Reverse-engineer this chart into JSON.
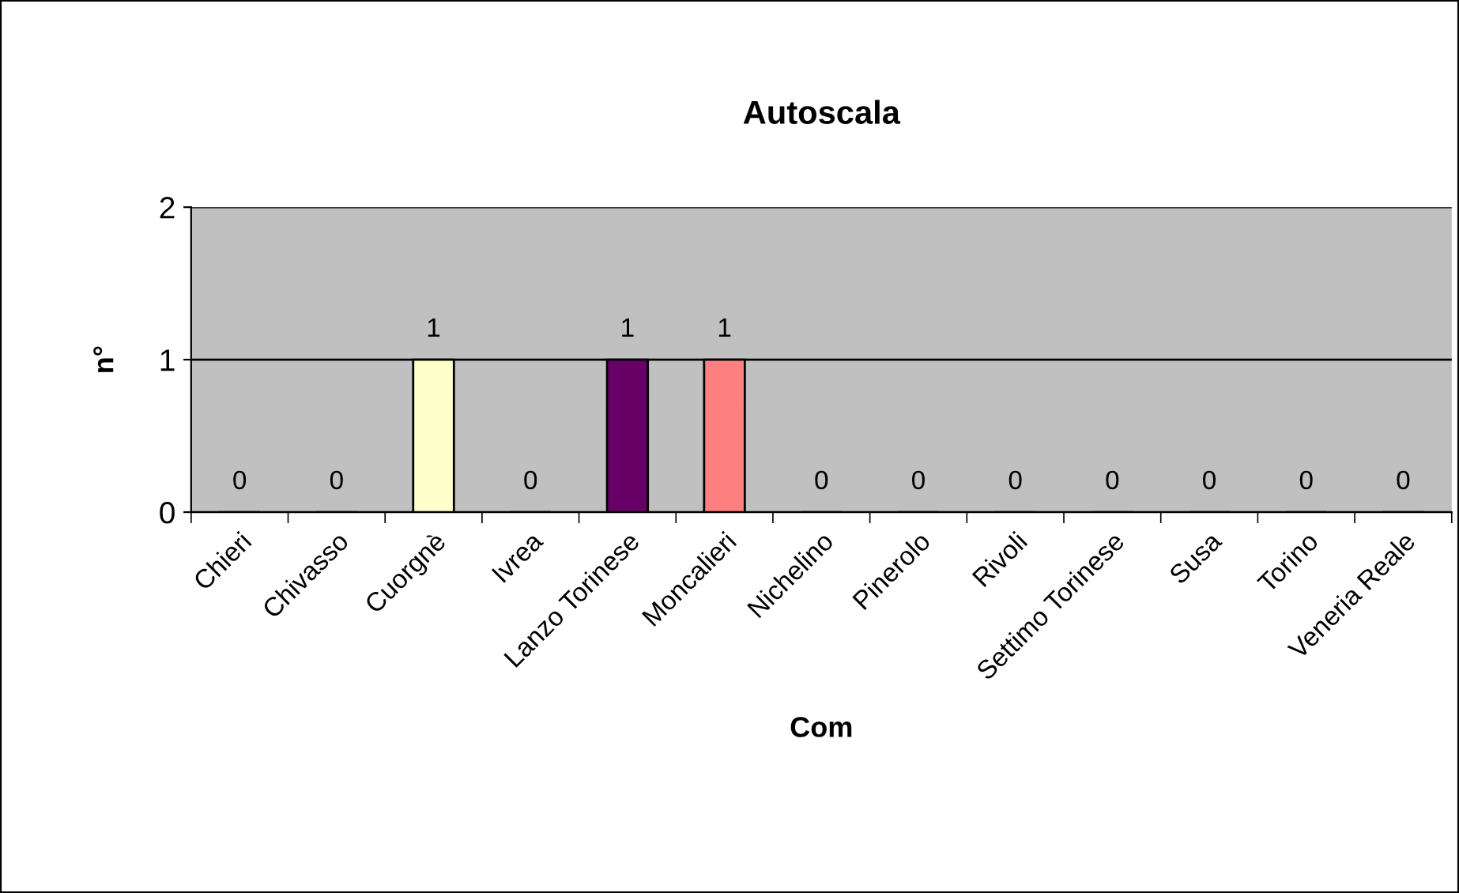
{
  "chart_data": {
    "type": "bar",
    "title": "Autoscala",
    "xlabel": "Com",
    "ylabel": "n°",
    "categories": [
      "Chieri",
      "Chivasso",
      "Cuorgnè",
      "Ivrea",
      "Lanzo Torinese",
      "Moncalieri",
      "Nichelino",
      "Pinerolo",
      "Rivoli",
      "Settimo Torinese",
      "Susa",
      "Torino",
      "Veneria Reale"
    ],
    "values": [
      0,
      0,
      1,
      0,
      1,
      1,
      0,
      0,
      0,
      0,
      0,
      0,
      0
    ],
    "colors": [
      "#ffffcc",
      "#ffffcc",
      "#ffffcc",
      "#ffffcc",
      "#660066",
      "#ff8080",
      "#ff8080",
      "#ff8080",
      "#ff8080",
      "#ff8080",
      "#ff8080",
      "#ff8080",
      "#ff8080"
    ],
    "ylim": [
      0,
      2
    ],
    "yticks": [
      0,
      1,
      2
    ],
    "grid": "y",
    "data_labels": true,
    "legend": false
  }
}
